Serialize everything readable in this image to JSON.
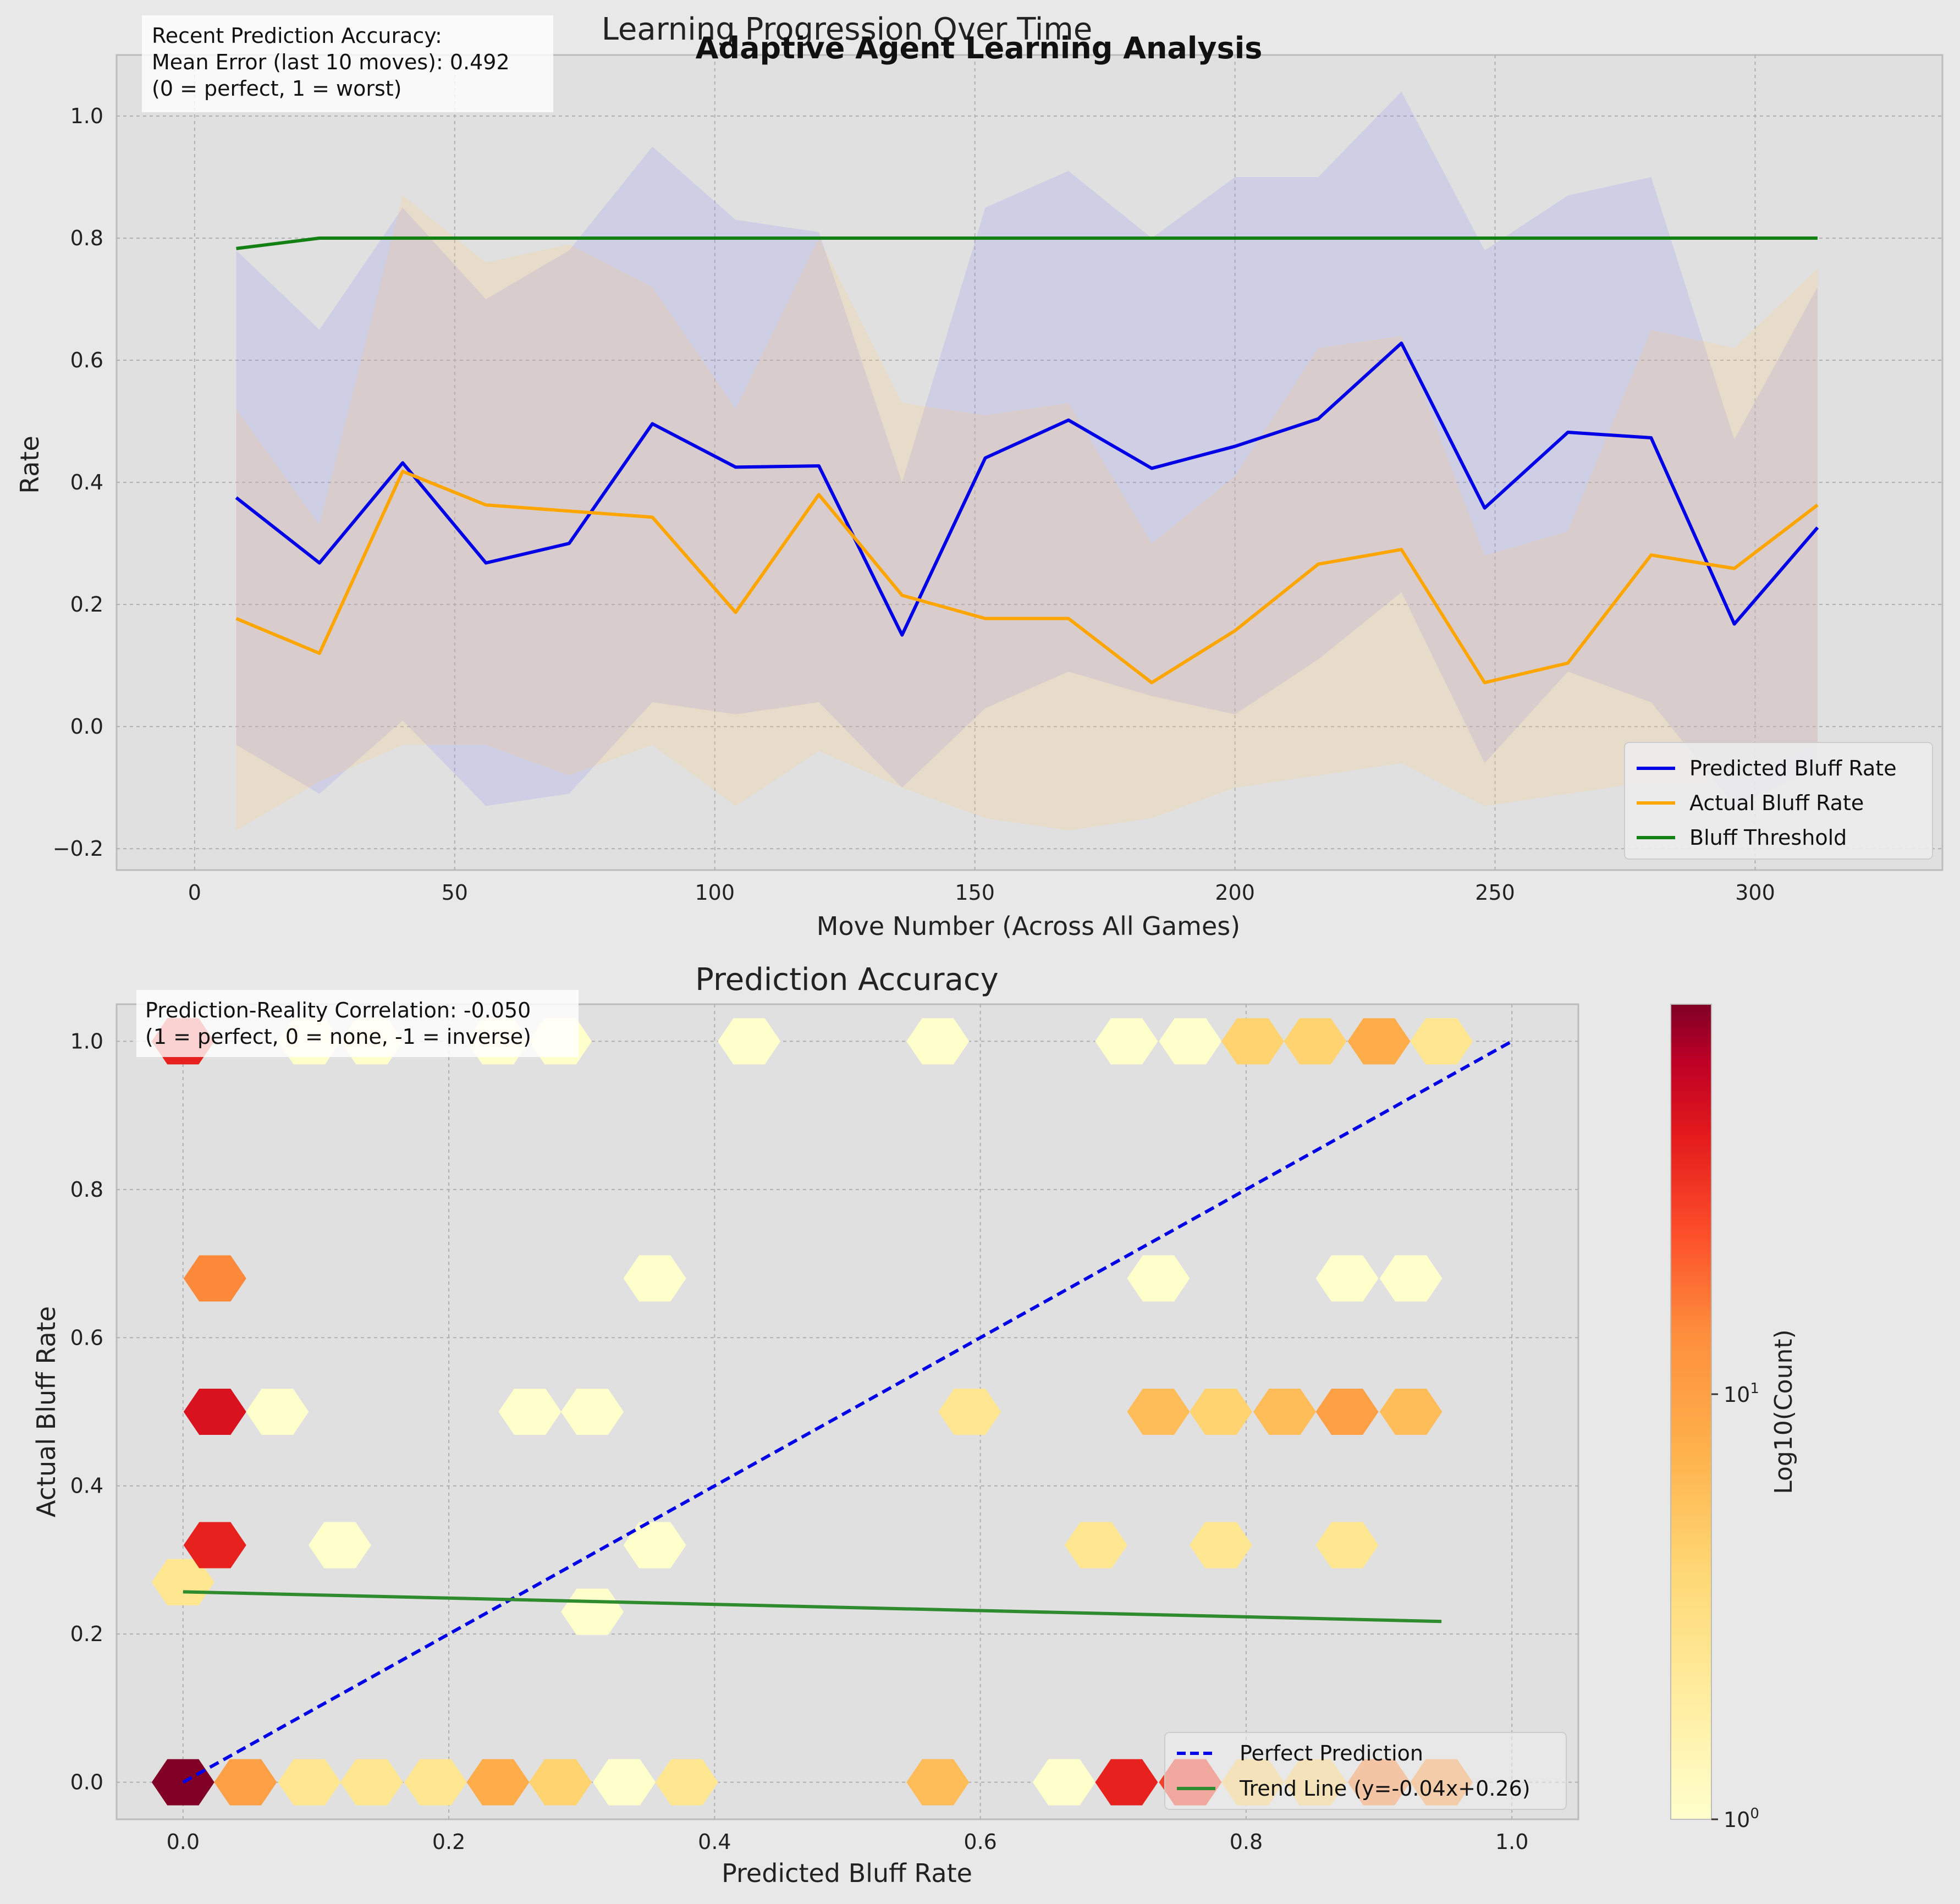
{
  "figure_title": "Adaptive Agent Learning Analysis",
  "colors": {
    "background": "#e8e8e8",
    "axes_bg": "#e0e0e0",
    "predicted": "#0000e6",
    "actual": "#ffa500",
    "threshold": "#138013",
    "trend": "#2e8b2e",
    "grid": "#b0b0b0"
  },
  "chart_data": [
    {
      "type": "line",
      "title": "Learning Progression Over Time",
      "xlabel": "Move Number (Across All Games)",
      "ylabel": "Rate",
      "xlim": [
        -15,
        336
      ],
      "ylim": [
        -0.235,
        1.1
      ],
      "xticks": [
        0,
        50,
        100,
        150,
        200,
        250,
        300
      ],
      "yticks": [
        -0.2,
        0.0,
        0.2,
        0.4,
        0.6,
        0.8,
        1.0
      ],
      "grid": true,
      "legend_position": "lower right",
      "annotation": [
        "Recent Prediction Accuracy:",
        "Mean Error (last 10 moves): 0.492",
        "(0 = perfect, 1 = worst)"
      ],
      "x": [
        8,
        24,
        40,
        56,
        72,
        88,
        104,
        120,
        136,
        152,
        168,
        184,
        200,
        216,
        232,
        248,
        264,
        280,
        296,
        312
      ],
      "series": [
        {
          "name": "Predicted Bluff Rate",
          "color": "#0000e6",
          "values": [
            0.375,
            0.268,
            0.432,
            0.268,
            0.3,
            0.496,
            0.425,
            0.427,
            0.15,
            0.44,
            0.502,
            0.423,
            0.459,
            0.504,
            0.628,
            0.358,
            0.482,
            0.473,
            0.168,
            0.326
          ],
          "band_upper": [
            0.78,
            0.65,
            0.85,
            0.7,
            0.78,
            0.95,
            0.83,
            0.81,
            0.4,
            0.85,
            0.91,
            0.8,
            0.9,
            0.9,
            1.04,
            0.78,
            0.87,
            0.9,
            0.47,
            0.72
          ],
          "band_lower": [
            -0.03,
            -0.11,
            0.01,
            -0.13,
            -0.11,
            0.04,
            0.02,
            0.04,
            -0.1,
            0.03,
            0.09,
            0.05,
            0.02,
            0.11,
            0.22,
            -0.06,
            0.09,
            0.04,
            -0.13,
            -0.07
          ]
        },
        {
          "name": "Actual Bluff Rate",
          "color": "#ffa500",
          "values": [
            0.177,
            0.12,
            0.418,
            0.363,
            0.353,
            0.343,
            0.187,
            0.38,
            0.215,
            0.177,
            0.177,
            0.072,
            0.157,
            0.266,
            0.29,
            0.072,
            0.104,
            0.281,
            0.259,
            0.363
          ],
          "band_upper": [
            0.52,
            0.33,
            0.87,
            0.76,
            0.79,
            0.72,
            0.52,
            0.8,
            0.53,
            0.51,
            0.53,
            0.3,
            0.41,
            0.62,
            0.64,
            0.28,
            0.32,
            0.65,
            0.62,
            0.75
          ],
          "band_lower": [
            -0.17,
            -0.09,
            -0.03,
            -0.03,
            -0.08,
            -0.03,
            -0.13,
            -0.04,
            -0.1,
            -0.15,
            -0.17,
            -0.15,
            -0.1,
            -0.08,
            -0.06,
            -0.13,
            -0.11,
            -0.09,
            -0.09,
            -0.03
          ]
        },
        {
          "name": "Bluff Threshold",
          "color": "#138013",
          "values": [
            0.783,
            0.8,
            0.8,
            0.8,
            0.8,
            0.8,
            0.8,
            0.8,
            0.8,
            0.8,
            0.8,
            0.8,
            0.8,
            0.8,
            0.8,
            0.8,
            0.8,
            0.8,
            0.8,
            0.8
          ]
        }
      ]
    },
    {
      "type": "heatmap",
      "subtype": "hexbin",
      "title": "Prediction Accuracy",
      "xlabel": "Predicted Bluff Rate",
      "ylabel": "Actual Bluff Rate",
      "xlim": [
        -0.05,
        1.05
      ],
      "ylim": [
        -0.05,
        1.05
      ],
      "xticks": [
        0.0,
        0.2,
        0.4,
        0.6,
        0.8,
        1.0
      ],
      "yticks": [
        0.0,
        0.2,
        0.4,
        0.6,
        0.8,
        1.0
      ],
      "grid": true,
      "legend_position": "lower right",
      "annotation": [
        "Prediction-Reality Correlation: -0.050",
        "(1 = perfect, 0 = none, -1 = inverse)"
      ],
      "colorbar": {
        "label": "Log10(Count)",
        "scale": "log",
        "min": 1,
        "max": 60,
        "ticks": [
          "10^0",
          "10^1"
        ]
      },
      "cells": [
        {
          "x": 0.0,
          "y": 0.0,
          "count": 60
        },
        {
          "x": 0.047,
          "y": 0.0,
          "count": 6
        },
        {
          "x": 0.095,
          "y": 0.0,
          "count": 2
        },
        {
          "x": 0.142,
          "y": 0.0,
          "count": 2
        },
        {
          "x": 0.19,
          "y": 0.0,
          "count": 2
        },
        {
          "x": 0.237,
          "y": 0.0,
          "count": 5
        },
        {
          "x": 0.284,
          "y": 0.0,
          "count": 3
        },
        {
          "x": 0.332,
          "y": 0.0,
          "count": 1
        },
        {
          "x": 0.379,
          "y": 0.0,
          "count": 2
        },
        {
          "x": 0.568,
          "y": 0.0,
          "count": 4
        },
        {
          "x": 0.663,
          "y": 0.0,
          "count": 1
        },
        {
          "x": 0.71,
          "y": 0.0,
          "count": 20
        },
        {
          "x": 0.758,
          "y": 0.0,
          "count": 15
        },
        {
          "x": 0.805,
          "y": 0.0,
          "count": 3
        },
        {
          "x": 0.852,
          "y": 0.0,
          "count": 3
        },
        {
          "x": 0.9,
          "y": 0.0,
          "count": 8
        },
        {
          "x": 0.947,
          "y": 0.0,
          "count": 6
        },
        {
          "x": 0.0,
          "y": 0.27,
          "count": 2
        },
        {
          "x": 0.308,
          "y": 0.23,
          "count": 1
        },
        {
          "x": 0.024,
          "y": 0.32,
          "count": 20
        },
        {
          "x": 0.118,
          "y": 0.32,
          "count": 1
        },
        {
          "x": 0.355,
          "y": 0.32,
          "count": 1
        },
        {
          "x": 0.687,
          "y": 0.32,
          "count": 2
        },
        {
          "x": 0.781,
          "y": 0.32,
          "count": 2
        },
        {
          "x": 0.876,
          "y": 0.32,
          "count": 2
        },
        {
          "x": 0.024,
          "y": 0.5,
          "count": 25
        },
        {
          "x": 0.071,
          "y": 0.5,
          "count": 1
        },
        {
          "x": 0.261,
          "y": 0.5,
          "count": 1
        },
        {
          "x": 0.308,
          "y": 0.5,
          "count": 1
        },
        {
          "x": 0.592,
          "y": 0.5,
          "count": 2
        },
        {
          "x": 0.734,
          "y": 0.5,
          "count": 4
        },
        {
          "x": 0.781,
          "y": 0.5,
          "count": 3
        },
        {
          "x": 0.829,
          "y": 0.5,
          "count": 4
        },
        {
          "x": 0.876,
          "y": 0.5,
          "count": 6
        },
        {
          "x": 0.924,
          "y": 0.5,
          "count": 4
        },
        {
          "x": 0.024,
          "y": 0.68,
          "count": 8
        },
        {
          "x": 0.355,
          "y": 0.68,
          "count": 1
        },
        {
          "x": 0.734,
          "y": 0.68,
          "count": 1
        },
        {
          "x": 0.876,
          "y": 0.68,
          "count": 1
        },
        {
          "x": 0.924,
          "y": 0.68,
          "count": 1
        },
        {
          "x": 0.0,
          "y": 1.0,
          "count": 20
        },
        {
          "x": 0.095,
          "y": 1.0,
          "count": 1
        },
        {
          "x": 0.142,
          "y": 1.0,
          "count": 1
        },
        {
          "x": 0.237,
          "y": 1.0,
          "count": 1
        },
        {
          "x": 0.284,
          "y": 1.0,
          "count": 1
        },
        {
          "x": 0.426,
          "y": 1.0,
          "count": 1
        },
        {
          "x": 0.568,
          "y": 1.0,
          "count": 1
        },
        {
          "x": 0.71,
          "y": 1.0,
          "count": 1
        },
        {
          "x": 0.758,
          "y": 1.0,
          "count": 1
        },
        {
          "x": 0.805,
          "y": 1.0,
          "count": 3
        },
        {
          "x": 0.852,
          "y": 1.0,
          "count": 3
        },
        {
          "x": 0.9,
          "y": 1.0,
          "count": 5
        },
        {
          "x": 0.947,
          "y": 1.0,
          "count": 2
        }
      ],
      "series": [
        {
          "name": "Perfect Prediction",
          "color": "#0000e6",
          "style": "dashed",
          "x": [
            0.0,
            1.0
          ],
          "values": [
            0.0,
            1.0
          ]
        },
        {
          "name": "Trend Line (y=-0.04x+0.26)",
          "color": "#2e8b2e",
          "style": "solid",
          "x": [
            0.0,
            0.947
          ],
          "values": [
            0.257,
            0.217
          ]
        }
      ]
    }
  ]
}
